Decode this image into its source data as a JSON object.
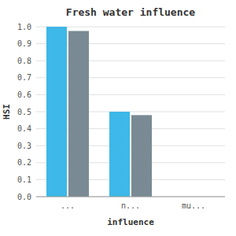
{
  "chart_data": {
    "type": "bar",
    "title": "Fresh water influence",
    "x_label": "influence",
    "y_label": "HSI",
    "categories": [
      "...",
      "n...",
      "mu..."
    ],
    "series": [
      {
        "color": "#3db8e8",
        "values": [
          1.0,
          0.5,
          0.0
        ]
      },
      {
        "color": "#7a8a94",
        "values": [
          0.975,
          0.48,
          0.0
        ]
      }
    ],
    "ylim": [
      0.0,
      1.0
    ],
    "yticks": [
      {
        "value": 0,
        "label": "0.0"
      },
      0.1,
      0.2,
      0.3,
      0.4,
      0.5,
      0.6,
      0.7,
      0.8,
      0.9,
      {
        "value": 1,
        "label": "1.0"
      }
    ],
    "grid": true
  }
}
